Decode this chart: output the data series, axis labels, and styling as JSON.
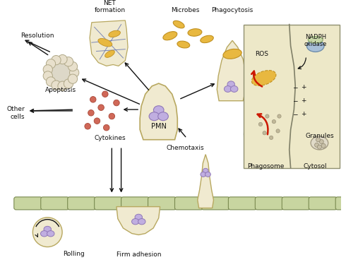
{
  "bg_color": "#ffffff",
  "cell_endothelium_color": "#c8d5a0",
  "cell_body_color": "#f0ead0",
  "cell_body_edge": "#b8a860",
  "nucleus_color": "#c0aee0",
  "nucleus_edge": "#9078b8",
  "microbe_color": "#e8b840",
  "microbe_edge": "#c09020",
  "cytokine_color": "#d06858",
  "inset_bg": "#ede8c8",
  "inset_border": "#909070",
  "ros_arrow_color": "#cc1800",
  "arrow_color": "#111111",
  "text_color": "#111111",
  "labels": {
    "rolling": "Rolling",
    "firm_adhesion": "Firm adhesion",
    "chemotaxis": "Chemotaxis",
    "cytokines": "Cytokines",
    "other_cells": "Other\ncells",
    "pmn": "PMN",
    "apoptosis": "Apoptosis",
    "resolution": "Resolution",
    "net_formation": "NET\nformation",
    "microbes": "Microbes",
    "phagocytosis": "Phagocytosis",
    "phagosome": "Phagosome",
    "cytosol": "Cytosol",
    "granules": "Granules",
    "ros": "ROS",
    "nadph": "NADPH\noxidase"
  }
}
